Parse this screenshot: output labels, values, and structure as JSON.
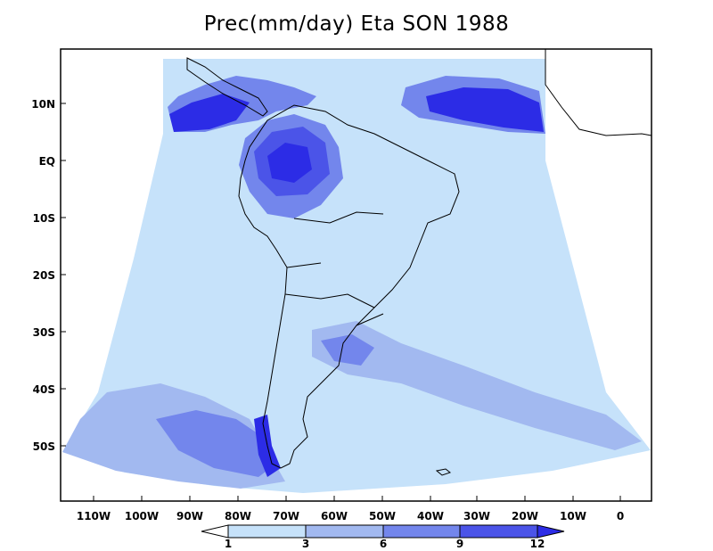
{
  "title": "Prec(mm/day) Eta SON 1988",
  "map": {
    "variable": "Prec",
    "units": "mm/day",
    "model": "Eta",
    "season": "SON",
    "year": "1988",
    "lat_labels": [
      "10N",
      "EQ",
      "10S",
      "20S",
      "30S",
      "40S",
      "50S"
    ],
    "lon_labels": [
      "110W",
      "100W",
      "90W",
      "80W",
      "70W",
      "60W",
      "50W",
      "40W",
      "30W",
      "20W",
      "10W",
      "0"
    ]
  },
  "colorbar": {
    "levels": [
      "1",
      "3",
      "6",
      "9",
      "12"
    ],
    "colors": [
      "#ffffff",
      "#c6e2fa",
      "#a2b9f0",
      "#7386ec",
      "#4b54e8",
      "#2c2ce6"
    ]
  },
  "colors": {
    "land": "#ffffff",
    "c1": "#c6e2fa",
    "c2": "#a2b9f0",
    "c3": "#7386ec",
    "c4": "#4b54e8",
    "c5": "#2c2ce6"
  }
}
